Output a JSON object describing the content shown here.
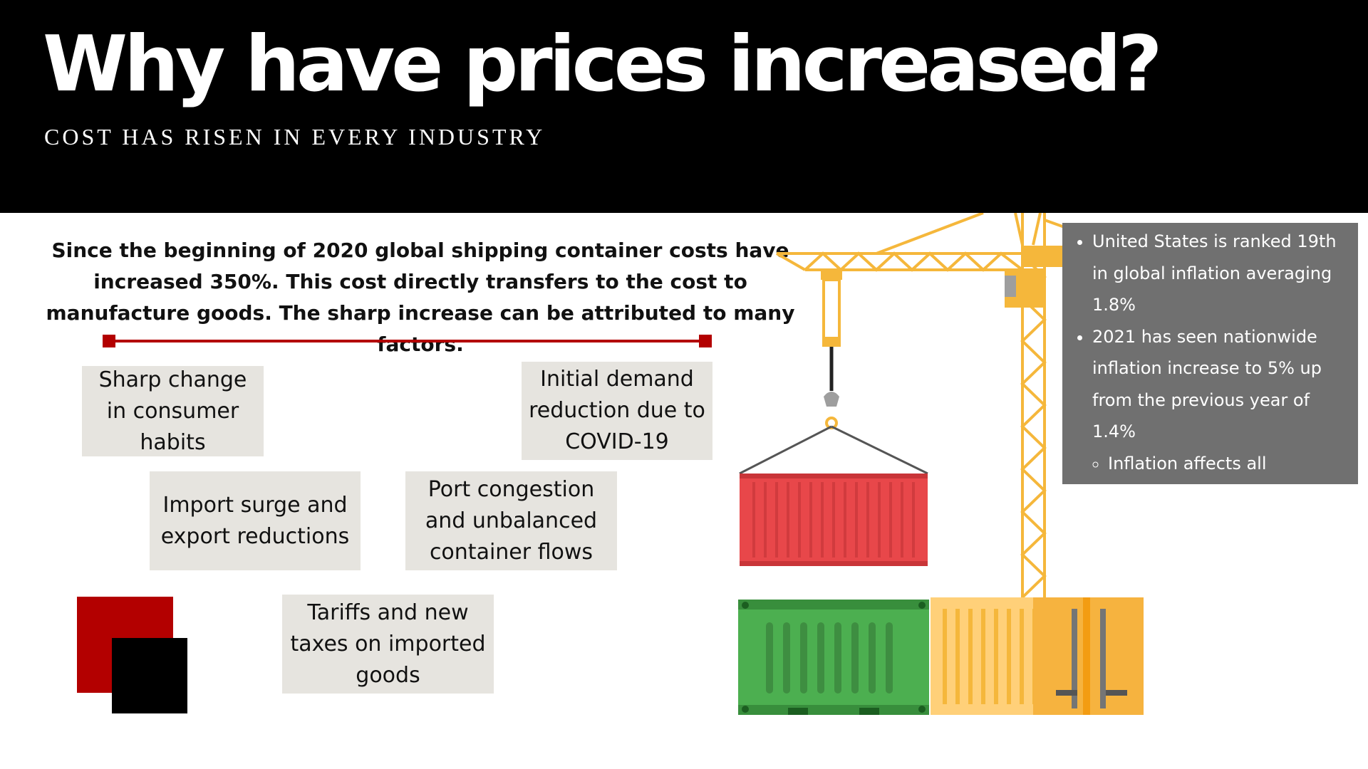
{
  "header": {
    "title": "Why have prices increased?",
    "subtitle": "COST HAS RISEN IN EVERY INDUSTRY"
  },
  "intro": "Since the beginning of 2020 global shipping container costs have increased 350%.  This cost directly transfers to the cost to manufacture goods.  The sharp increase can be attributed to many factors.",
  "factors": [
    "Sharp change in consumer habits",
    "Initial demand reduction due to COVID-19",
    "Import surge and export reductions",
    "Port congestion and unbalanced container flows",
    "Tariffs and new taxes on imported goods"
  ],
  "bullets": {
    "items": [
      "United States is ranked 19th in global inflation averaging 1.8%",
      "2021 has seen nationwide inflation increase to 5% up from the previous year of 1.4%"
    ],
    "subitems": [
      "Inflation affects all industries and causes the cost of goods to increase."
    ]
  },
  "colors": {
    "accent_red": "#b30000",
    "factor_box": "#e6e4df",
    "crane_yellow": "#f5b73b",
    "container_red": "#e8474a",
    "container_green": "#4caf50",
    "container_orange": "#f6b33f",
    "info_panel": "#707070"
  }
}
